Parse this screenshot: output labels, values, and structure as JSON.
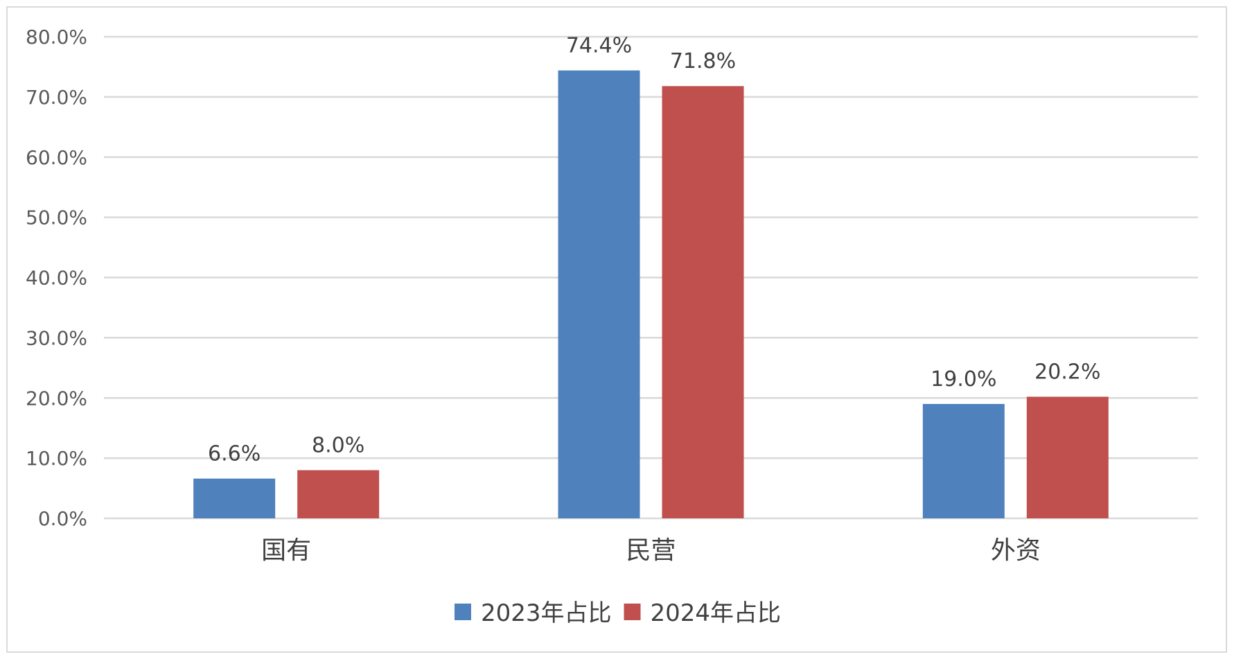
{
  "chart_data": {
    "type": "bar",
    "title": "",
    "xlabel": "",
    "ylabel": "",
    "categories": [
      "国有",
      "民营",
      "外资"
    ],
    "series": [
      {
        "name": "2023年占比",
        "color": "#4f81bd",
        "values": [
          6.6,
          74.4,
          19.0
        ],
        "labels": [
          "6.6%",
          "74.4%",
          "19.0%"
        ]
      },
      {
        "name": "2024年占比",
        "color": "#c0504d",
        "values": [
          8.0,
          71.8,
          20.2
        ],
        "labels": [
          "8.0%",
          "71.8%",
          "20.2%"
        ]
      }
    ],
    "ylim": [
      0,
      80
    ],
    "yticks": [
      0,
      10,
      20,
      30,
      40,
      50,
      60,
      70,
      80
    ],
    "ytick_labels": [
      "0.0%",
      "10.0%",
      "20.0%",
      "30.0%",
      "40.0%",
      "50.0%",
      "60.0%",
      "70.0%",
      "80.0%"
    ],
    "grid": true,
    "legend": "bottom"
  }
}
